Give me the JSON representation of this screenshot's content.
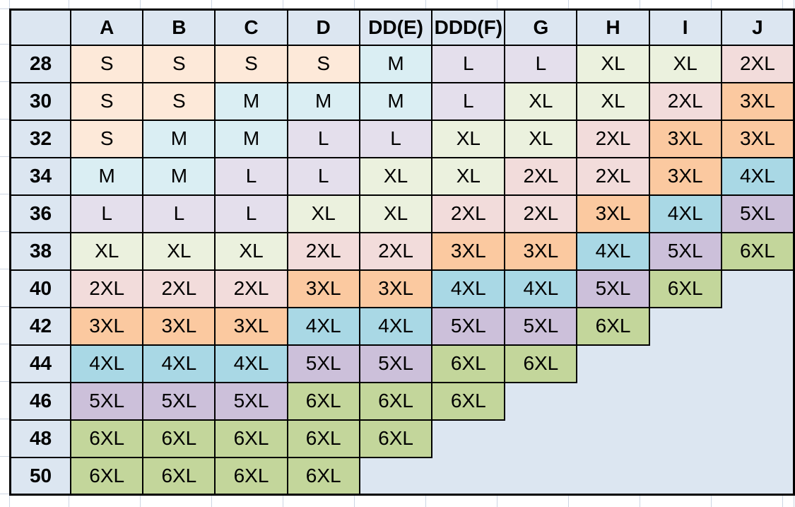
{
  "sheet": {
    "table_name": "bra-size-conversion-chart",
    "columns": [
      "",
      "A",
      "B",
      "C",
      "D",
      "DD(E)",
      "DDD(F)",
      "G",
      "H",
      "I",
      "J"
    ],
    "rows": [
      {
        "label": "28",
        "cells": [
          "S",
          "S",
          "S",
          "S",
          "M",
          "L",
          "L",
          "XL",
          "XL",
          "2XL"
        ]
      },
      {
        "label": "30",
        "cells": [
          "S",
          "S",
          "M",
          "M",
          "M",
          "L",
          "XL",
          "XL",
          "2XL",
          "3XL"
        ]
      },
      {
        "label": "32",
        "cells": [
          "S",
          "M",
          "M",
          "L",
          "L",
          "XL",
          "XL",
          "2XL",
          "3XL",
          "3XL"
        ]
      },
      {
        "label": "34",
        "cells": [
          "M",
          "M",
          "L",
          "L",
          "XL",
          "XL",
          "2XL",
          "2XL",
          "3XL",
          "4XL"
        ]
      },
      {
        "label": "36",
        "cells": [
          "L",
          "L",
          "L",
          "XL",
          "XL",
          "2XL",
          "2XL",
          "3XL",
          "4XL",
          "5XL"
        ]
      },
      {
        "label": "38",
        "cells": [
          "XL",
          "XL",
          "XL",
          "2XL",
          "2XL",
          "3XL",
          "3XL",
          "4XL",
          "5XL",
          "6XL"
        ]
      },
      {
        "label": "40",
        "cells": [
          "2XL",
          "2XL",
          "2XL",
          "3XL",
          "3XL",
          "4XL",
          "4XL",
          "5XL",
          "6XL",
          ""
        ]
      },
      {
        "label": "42",
        "cells": [
          "3XL",
          "3XL",
          "3XL",
          "4XL",
          "4XL",
          "5XL",
          "5XL",
          "6XL",
          "",
          ""
        ]
      },
      {
        "label": "44",
        "cells": [
          "4XL",
          "4XL",
          "4XL",
          "5XL",
          "5XL",
          "6XL",
          "6XL",
          "",
          "",
          ""
        ]
      },
      {
        "label": "46",
        "cells": [
          "5XL",
          "5XL",
          "5XL",
          "6XL",
          "6XL",
          "6XL",
          "",
          "",
          "",
          ""
        ]
      },
      {
        "label": "48",
        "cells": [
          "6XL",
          "6XL",
          "6XL",
          "6XL",
          "6XL",
          "",
          "",
          "",
          "",
          ""
        ]
      },
      {
        "label": "50",
        "cells": [
          "6XL",
          "6XL",
          "6XL",
          "6XL",
          "",
          "",
          "",
          "",
          "",
          ""
        ]
      }
    ],
    "colors": {
      "header_fill": "#DCE6F1",
      "empty_fill": "#DCE6F1",
      "border": "#000000",
      "gridline": "#CCD5E3",
      "size_fills": {
        "S": "#FDE9D9",
        "M": "#DAEEF3",
        "L": "#E4DFEC",
        "XL": "#EBF1DE",
        "2XL": "#F2DCDB",
        "3XL": "#FBC9A0",
        "4XL": "#A9D8E5",
        "5XL": "#CCC0DA",
        "6XL": "#C3D69B"
      }
    }
  }
}
